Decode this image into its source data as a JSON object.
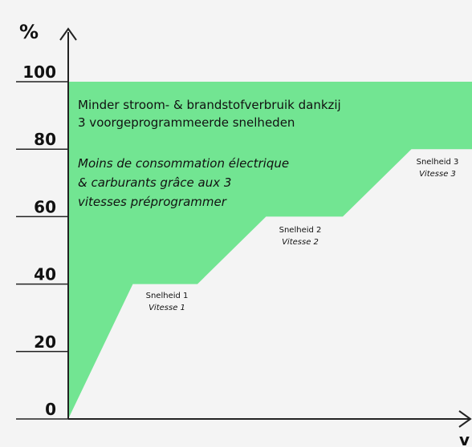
{
  "chart_data": {
    "type": "area",
    "ylabel": "%",
    "xlabel": "v",
    "x": [
      0,
      16,
      32,
      49,
      68,
      85,
      100
    ],
    "xlim": [
      0,
      100
    ],
    "ylim": [
      0,
      100
    ],
    "yticks": [
      0,
      20,
      40,
      60,
      80,
      100
    ],
    "series": [
      {
        "color": "#72e592",
        "values": [
          0,
          40,
          40,
          60,
          60,
          80,
          80
        ],
        "upper": [
          100,
          100,
          100,
          100,
          100,
          100,
          100
        ]
      }
    ],
    "annotations": {
      "dutch": [
        "Minder stroom- & brandstofverbruik dankzij",
        "3 voorgeprogrammeerde snelheden"
      ],
      "french": [
        "Moins de consommation électrique",
        "& carburants grâce aux 3",
        "vitesses préprogrammer"
      ],
      "speeds": [
        [
          "Snelheid 1",
          "Vitesse 1"
        ],
        [
          "Snelheid 2",
          "Vitesse 2"
        ],
        [
          "Snelheid 3",
          "Vitesse 3"
        ]
      ]
    }
  }
}
